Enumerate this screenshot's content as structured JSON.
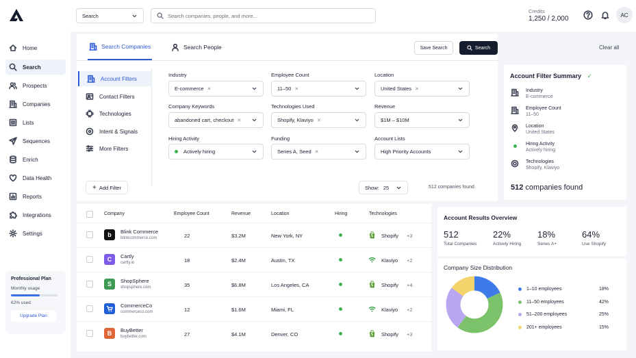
{
  "topbar": {
    "search_type": "Search",
    "search_placeholder": "Search companies, people, and more...",
    "credits_label": "Credits",
    "credits_value": "1,250 / 2,000",
    "avatar_initials": "AC"
  },
  "sidebar": {
    "items": [
      {
        "label": "Home",
        "icon": "home-icon"
      },
      {
        "label": "Search",
        "icon": "search-icon",
        "active": true
      },
      {
        "label": "Prospects",
        "icon": "users-icon"
      },
      {
        "label": "Companies",
        "icon": "building-icon"
      },
      {
        "label": "Lists",
        "icon": "list-icon"
      },
      {
        "label": "Sequences",
        "icon": "send-icon"
      },
      {
        "label": "Enrich",
        "icon": "database-icon"
      },
      {
        "label": "Data Health",
        "icon": "pulse-icon"
      },
      {
        "label": "Reports",
        "icon": "chart-icon"
      },
      {
        "label": "Integrations",
        "icon": "puzzle-icon"
      },
      {
        "label": "Settings",
        "icon": "gear-icon"
      }
    ],
    "plan": {
      "title": "Professional Plan",
      "usage_label": "Monthly usage",
      "usage_fraction": 0.62,
      "used_text": "62% used",
      "upgrade_label": "Upgrade Plan"
    }
  },
  "tabs": {
    "companies": "Search Companies",
    "people": "Search People"
  },
  "actions": {
    "save_search": "Save Search",
    "search": "Search",
    "clear_all": "Clear all"
  },
  "filter_tabs": [
    "Account Filters",
    "Contact Filters",
    "Technologies",
    "Intent & Signals",
    "More Filters"
  ],
  "filters": {
    "industry": {
      "label": "Industry",
      "value": "E-commerce"
    },
    "employee_count": {
      "label": "Employee Count",
      "value": "11–50"
    },
    "location": {
      "label": "Location",
      "value": "United States"
    },
    "keywords": {
      "label": "Company Keywords",
      "value": "abandoned cart, checkout"
    },
    "technologies": {
      "label": "Technologies Used",
      "value": "Shopify, Klaviyo"
    },
    "revenue": {
      "label": "Revenue",
      "value": "$1M – $10M"
    },
    "hiring": {
      "label": "Hiring Activity",
      "value": "Actively hiring"
    },
    "funding": {
      "label": "Funding",
      "value": "Series A, Seed"
    },
    "account_lists": {
      "label": "Account Lists",
      "value": "High Priority Accounts"
    }
  },
  "add_filter": "Add Filter",
  "show": {
    "label": "Show:",
    "value": "25"
  },
  "companies_found": "512 companies found",
  "summary": {
    "title": "Account Filter Summary",
    "rows": [
      {
        "label": "Industry",
        "value": "E-commerce"
      },
      {
        "label": "Employee Count",
        "value": "11–50"
      },
      {
        "label": "Location",
        "value": "United States"
      },
      {
        "label": "Hiring Activity",
        "value": "Actively hiring"
      },
      {
        "label": "Technologies",
        "value": "Shopify, Klaviyo"
      }
    ],
    "total_number": "512",
    "total_text": "companies found"
  },
  "table": {
    "headers": [
      "Company",
      "Employee Count",
      "Revenue",
      "Location",
      "Hiring",
      "Technologies"
    ],
    "rows": [
      {
        "name": "Blink Commerce",
        "domain": "blinkcommerce.com",
        "logo": "b",
        "logo_color": "#111111",
        "employees": "22",
        "revenue": "$3.2M",
        "location": "New York, NY",
        "tech": "Shopify",
        "tech_icon": "shopify",
        "more": "+3"
      },
      {
        "name": "Cartly",
        "domain": "cartly.io",
        "logo": "C",
        "logo_color": "#7c5ce6",
        "employees": "18",
        "revenue": "$2.4M",
        "location": "Austin, TX",
        "tech": "Klaviyo",
        "tech_icon": "klaviyo",
        "more": "+2"
      },
      {
        "name": "ShopSphere",
        "domain": "shopsphere.com",
        "logo": "S",
        "logo_color": "#3f9a52",
        "employees": "35",
        "revenue": "$6.8M",
        "location": "Los Angeles, CA",
        "tech": "Shopify",
        "tech_icon": "shopify",
        "more": "+4"
      },
      {
        "name": "CommerceCo",
        "domain": "commerceco.com",
        "logo": "cart",
        "logo_color": "#1f5fd6",
        "employees": "12",
        "revenue": "$1.6M",
        "location": "Miami, FL",
        "tech": "Klaviyo",
        "tech_icon": "klaviyo",
        "more": "+2"
      },
      {
        "name": "BuyBetter",
        "domain": "buybetter.com",
        "logo": "B",
        "logo_color": "#e0663a",
        "employees": "27",
        "revenue": "$4.1M",
        "location": "Denver, CO",
        "tech": "Shopify",
        "tech_icon": "shopify",
        "more": "+3"
      }
    ]
  },
  "overview": {
    "title": "Account Results Overview",
    "stats": [
      {
        "value": "512",
        "label": "Total Companies"
      },
      {
        "value": "22%",
        "label": "Actively Hiring"
      },
      {
        "value": "18%",
        "label": "Series A+"
      },
      {
        "value": "64%",
        "label": "Use Shopify"
      }
    ]
  },
  "chart_data": {
    "type": "pie",
    "donut": true,
    "title": "Company Size Distribution",
    "categories": [
      "1–10 employees",
      "11–50 employees",
      "51–200 employees",
      "201+ employees"
    ],
    "values": [
      18,
      42,
      25,
      15
    ],
    "value_labels": [
      "18%",
      "42%",
      "25%",
      "15%"
    ],
    "colors": [
      "#3d7be8",
      "#7cc26a",
      "#b9a6f0",
      "#f3d36b"
    ],
    "legend_position": "right"
  }
}
